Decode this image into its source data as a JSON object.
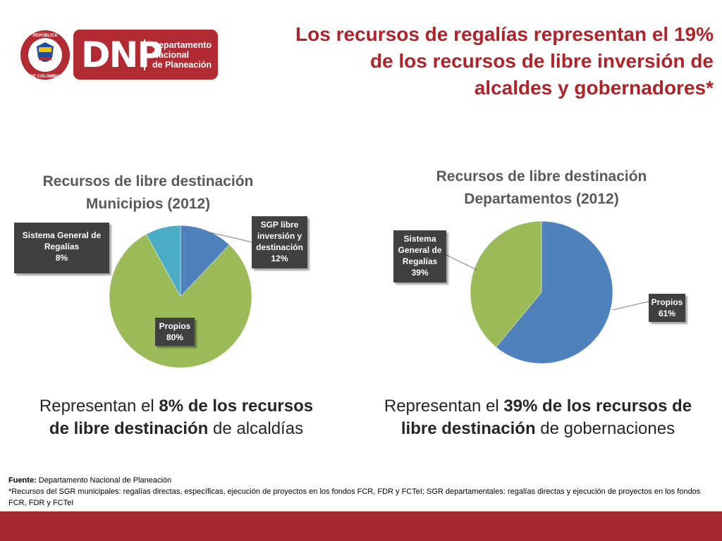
{
  "header": {
    "seal_text_top": "REPÚBLICA",
    "seal_text_bottom": "DE COLOMBIA",
    "logo_letters": "DNP",
    "logo_subtitle": "Departamento\nNacional\nde Planeación",
    "title": "Los recursos de regalías representan el 19% de los recursos de libre inversión de alcaldes y gobernadores*"
  },
  "colors": {
    "brand_red": "#b22a32",
    "title_red": "#b22329",
    "slice_blue": "#4f81bd",
    "slice_green": "#9bbb59",
    "slice_cyan": "#4bacc6",
    "label_dark": "#404040"
  },
  "chart_data": [
    {
      "type": "pie",
      "title_line1": "Recursos de libre destinación",
      "title_line2": "Municipios (2012)",
      "slices": [
        {
          "label_line1": "SGP libre",
          "label_line2": "inversión y",
          "label_line3": "destinación",
          "value": 12,
          "value_label": "12%",
          "color": "#4f81bd"
        },
        {
          "label": "Propios",
          "value": 80,
          "value_label": "80%",
          "color": "#9bbb59"
        },
        {
          "label_line1": "Sistema General de",
          "label_line2": "Regalías",
          "value": 8,
          "value_label": "8%",
          "color": "#4bacc6"
        }
      ]
    },
    {
      "type": "pie",
      "title_line1": "Recursos de libre destinación",
      "title_line2": "Departamentos (2012)",
      "slices": [
        {
          "label": "Propios",
          "value": 61,
          "value_label": "61%",
          "color": "#4f81bd"
        },
        {
          "label_line1": "Sistema",
          "label_line2": "General de",
          "label_line3": "Regalías",
          "value": 39,
          "value_label": "39%",
          "color": "#9bbb59"
        }
      ]
    }
  ],
  "captions": {
    "left": {
      "pre": "Representan el ",
      "bold1": "8% de los recursos",
      "bold2": "de libre destinación",
      "post": " de alcaldías"
    },
    "right": {
      "pre": "Representan el ",
      "bold1": "39% de los recursos de",
      "bold2": "libre destinación",
      "post": " de gobernaciones"
    }
  },
  "footer": {
    "source_label": "Fuente:",
    "source_text": " Departamento Nacional de Planeación",
    "note": "*Recursos del SGR municipales: regalías directas, específicas, ejecución de proyectos en los fondos FCR, FDR y FCTeI; SGR departamentales: regalías directas y ejecución de proyectos en los fondos FCR, FDR y FCTeI"
  }
}
